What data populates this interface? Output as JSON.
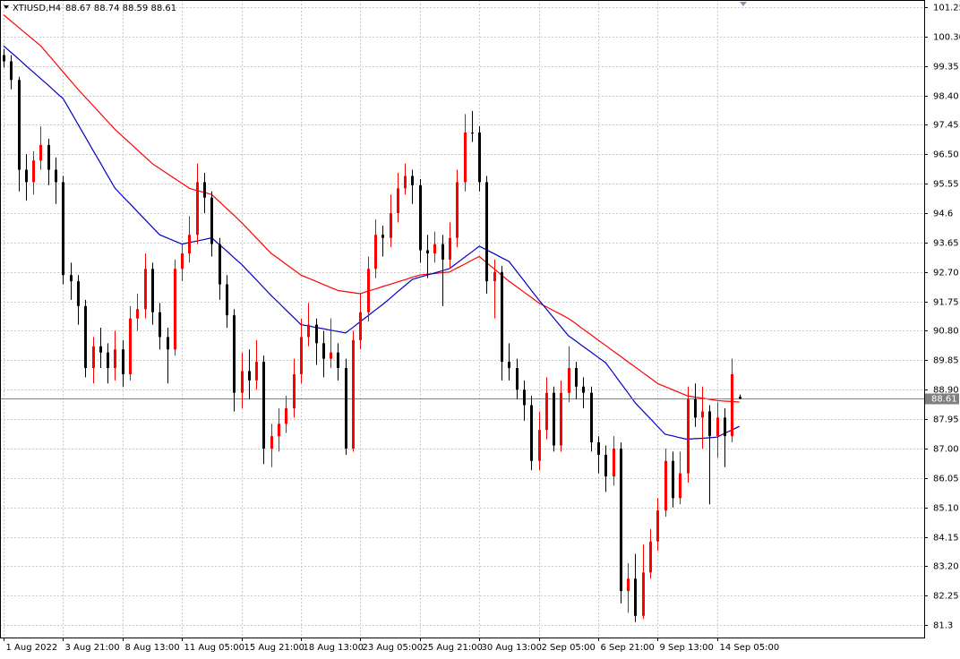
{
  "chart_data": {
    "type": "candlestick",
    "title": "XTIUSD,H4",
    "up_color": "#ff0000",
    "down_color": "#000000",
    "grid": true,
    "xlim": [
      -0.48,
      123.86
    ],
    "xticks": [
      {
        "value": 0,
        "label": "1 Aug 2022"
      },
      {
        "value": 8,
        "label": "3 Aug 21:00"
      },
      {
        "value": 16,
        "label": "8 Aug 13:00"
      },
      {
        "value": 24,
        "label": "11 Aug 05:00"
      },
      {
        "value": 32,
        "label": "15 Aug 21:00"
      },
      {
        "value": 40,
        "label": "18 Aug 13:00"
      },
      {
        "value": 48,
        "label": "23 Aug 05:00"
      },
      {
        "value": 56,
        "label": "25 Aug 21:00"
      },
      {
        "value": 64,
        "label": "30 Aug 13:00"
      },
      {
        "value": 72,
        "label": "2 Sep 05:00"
      },
      {
        "value": 80,
        "label": "6 Sep 21:00"
      },
      {
        "value": 88,
        "label": "9 Sep 13:00"
      },
      {
        "value": 96,
        "label": "14 Sep 05:00"
      }
    ],
    "ylim": [
      80.9,
      101.48
    ],
    "yticks": [
      101.25,
      {
        "value": 100.3,
        "label": "100.30"
      },
      99.35,
      {
        "value": 98.4,
        "label": "98.40"
      },
      97.45,
      {
        "value": 96.5,
        "label": "96.50"
      },
      95.55,
      94.6,
      93.65,
      {
        "value": 92.7,
        "label": "92.70"
      },
      91.75,
      {
        "value": 90.8,
        "label": "90.80"
      },
      89.85,
      {
        "value": 88.9,
        "label": "88.90"
      },
      87.95,
      {
        "value": 87,
        "label": "87.00"
      },
      86.05,
      {
        "value": 85.1,
        "label": "85.10"
      },
      84.15,
      {
        "value": 83.2,
        "label": "83.20"
      },
      82.25,
      81.3
    ],
    "open": [
      99.7,
      99.5,
      98.9,
      96.0,
      95.6,
      96.3,
      96.8,
      96.0,
      95.6,
      92.6,
      92.4,
      91.6,
      89.6,
      90.3,
      90.1,
      89.6,
      90.2,
      89.4,
      91.2,
      91.5,
      92.8,
      91.4,
      90.6,
      90.2,
      92.8,
      93.3,
      93.9,
      95.6,
      95.1,
      93.6,
      92.3,
      91.3,
      88.8,
      89.5,
      89.2,
      89.8,
      87.0,
      87.4,
      87.8,
      88.3,
      89.4,
      90.6,
      91.0,
      90.4,
      89.9,
      90.1,
      89.6,
      87.0,
      90.5,
      91.4,
      92.8,
      93.9,
      93.8,
      94.6,
      95.4,
      95.8,
      95.5,
      93.4,
      93.3,
      93.6,
      93.1,
      93.8,
      95.6,
      97.2,
      97.2,
      95.6,
      92.4,
      92.7,
      89.8,
      89.6,
      88.9,
      88.4,
      86.6,
      87.6,
      88.8,
      87.1,
      88.8,
      89.6,
      89.0,
      88.8,
      87.2,
      86.8,
      86.1,
      87.0,
      82.4,
      82.8,
      81.6,
      83.0,
      84.0,
      85.0,
      86.6,
      85.4,
      86.2,
      88.6,
      88.0,
      88.2,
      87.4,
      88.0,
      87.4,
      88.67
    ],
    "high": [
      99.9,
      99.7,
      99.0,
      96.5,
      96.6,
      97.4,
      97.0,
      96.4,
      95.8,
      93.0,
      92.6,
      91.8,
      90.6,
      90.9,
      90.4,
      90.8,
      90.5,
      91.6,
      92.0,
      93.3,
      93.0,
      91.7,
      90.9,
      93.1,
      93.6,
      94.5,
      96.2,
      95.9,
      95.3,
      93.8,
      92.6,
      91.5,
      90.1,
      90.2,
      90.5,
      90.0,
      87.8,
      88.3,
      88.7,
      89.9,
      91.2,
      91.7,
      91.2,
      90.8,
      91.2,
      90.4,
      89.9,
      90.8,
      92.0,
      93.2,
      94.4,
      94.2,
      95.2,
      95.9,
      96.2,
      96.0,
      95.7,
      93.9,
      94.0,
      93.9,
      94.3,
      96.0,
      97.8,
      97.9,
      97.4,
      95.8,
      93.1,
      92.9,
      90.4,
      89.9,
      89.2,
      88.7,
      88.2,
      89.3,
      89.0,
      89.2,
      90.3,
      89.8,
      89.3,
      89.0,
      87.4,
      87.1,
      87.4,
      87.2,
      83.3,
      83.6,
      83.9,
      84.4,
      85.4,
      87.0,
      86.9,
      86.9,
      89.0,
      89.1,
      89.0,
      88.4,
      88.5,
      88.3,
      89.9,
      88.74
    ],
    "low": [
      99.3,
      98.6,
      95.3,
      95.0,
      95.2,
      96.0,
      95.5,
      94.9,
      92.3,
      91.8,
      91.0,
      89.3,
      89.1,
      89.6,
      89.1,
      89.2,
      89.0,
      89.2,
      90.8,
      91.2,
      91.0,
      90.2,
      89.1,
      90.0,
      92.4,
      93.0,
      93.6,
      94.6,
      93.2,
      91.8,
      90.9,
      88.2,
      88.3,
      88.6,
      88.9,
      86.5,
      86.4,
      86.9,
      87.5,
      88.0,
      89.1,
      90.3,
      89.7,
      89.3,
      89.6,
      89.2,
      86.8,
      86.9,
      90.2,
      91.1,
      92.5,
      93.2,
      93.5,
      94.3,
      95.2,
      94.9,
      93.0,
      92.5,
      93.0,
      91.6,
      92.8,
      93.5,
      95.3,
      96.9,
      95.3,
      92.0,
      91.2,
      89.2,
      89.2,
      88.6,
      87.9,
      86.3,
      86.3,
      87.3,
      86.9,
      86.9,
      88.5,
      88.6,
      88.3,
      86.9,
      86.2,
      85.6,
      85.8,
      82.0,
      81.7,
      81.4,
      81.5,
      82.8,
      83.7,
      84.8,
      85.1,
      85.2,
      85.9,
      87.7,
      87.0,
      85.2,
      86.7,
      86.4,
      87.2,
      88.59
    ],
    "close": [
      99.5,
      98.9,
      96.0,
      95.6,
      96.3,
      96.8,
      96.0,
      95.6,
      92.6,
      92.4,
      91.6,
      89.6,
      90.3,
      90.1,
      89.6,
      90.2,
      89.4,
      91.2,
      91.5,
      92.8,
      91.4,
      90.6,
      90.2,
      92.8,
      93.3,
      93.9,
      95.6,
      95.1,
      93.6,
      92.3,
      91.3,
      88.8,
      89.5,
      89.2,
      89.8,
      87.0,
      87.4,
      87.8,
      88.3,
      89.4,
      90.6,
      91.0,
      90.4,
      89.9,
      90.1,
      89.6,
      87.0,
      90.5,
      91.4,
      92.8,
      93.9,
      93.8,
      94.6,
      95.4,
      95.8,
      95.5,
      93.4,
      93.3,
      93.6,
      93.1,
      93.8,
      95.6,
      97.2,
      97.2,
      95.6,
      92.4,
      92.7,
      89.8,
      89.6,
      88.9,
      88.4,
      86.6,
      87.6,
      88.8,
      87.1,
      88.8,
      89.6,
      89.0,
      88.8,
      87.2,
      86.8,
      86.1,
      87.0,
      82.4,
      82.8,
      81.6,
      83.0,
      84.0,
      85.0,
      86.6,
      85.4,
      86.2,
      88.6,
      88.0,
      88.2,
      87.4,
      88.0,
      87.4,
      89.4,
      88.61
    ],
    "moving_averages": [
      {
        "color": "#ff0000",
        "values": [
          101.0,
          100.8,
          100.6,
          100.4,
          100.2,
          100.0,
          99.72,
          99.44,
          99.16,
          98.88,
          98.6,
          98.34,
          98.08,
          97.82,
          97.56,
          97.3,
          97.08,
          96.86,
          96.64,
          96.42,
          96.2,
          96.04,
          95.88,
          95.72,
          95.56,
          95.4,
          95.33,
          95.27,
          95.2,
          94.98,
          94.75,
          94.53,
          94.3,
          94.05,
          93.8,
          93.55,
          93.3,
          93.13,
          92.95,
          92.78,
          92.6,
          92.5,
          92.4,
          92.3,
          92.2,
          92.1,
          92.07,
          92.03,
          92.0,
          92.08,
          92.15,
          92.23,
          92.3,
          92.38,
          92.45,
          92.53,
          92.6,
          92.63,
          92.65,
          92.68,
          92.7,
          92.83,
          92.95,
          93.08,
          93.2,
          93.0,
          92.8,
          92.6,
          92.4,
          92.23,
          92.05,
          91.88,
          91.7,
          91.58,
          91.45,
          91.33,
          91.2,
          91.03,
          90.85,
          90.68,
          90.5,
          90.33,
          90.15,
          89.98,
          89.8,
          89.63,
          89.45,
          89.28,
          89.1,
          89.0,
          88.9,
          88.8,
          88.7,
          88.66,
          88.63,
          88.59,
          88.55,
          88.53,
          88.52,
          88.5
        ]
      },
      {
        "color": "#0000c8",
        "values": [
          100.0,
          99.79,
          99.58,
          99.36,
          99.15,
          98.94,
          98.73,
          98.51,
          98.3,
          97.89,
          97.47,
          97.06,
          96.64,
          96.23,
          95.81,
          95.4,
          95.15,
          94.9,
          94.65,
          94.4,
          94.15,
          93.9,
          93.8,
          93.7,
          93.6,
          93.65,
          93.7,
          93.75,
          93.8,
          93.59,
          93.38,
          93.16,
          92.95,
          92.7,
          92.45,
          92.19,
          91.94,
          91.71,
          91.47,
          91.24,
          91.0,
          90.96,
          90.91,
          90.87,
          90.82,
          90.78,
          90.73,
          90.91,
          91.1,
          91.28,
          91.47,
          91.65,
          91.85,
          92.06,
          92.26,
          92.46,
          92.53,
          92.6,
          92.67,
          92.74,
          92.81,
          92.99,
          93.17,
          93.35,
          93.53,
          93.41,
          93.29,
          93.16,
          93.04,
          92.73,
          92.42,
          92.11,
          91.8,
          91.51,
          91.22,
          90.93,
          90.64,
          90.47,
          90.29,
          90.12,
          89.94,
          89.77,
          89.45,
          89.12,
          88.8,
          88.47,
          88.22,
          87.97,
          87.71,
          87.46,
          87.41,
          87.35,
          87.3,
          87.32,
          87.33,
          87.35,
          87.37,
          87.49,
          87.6,
          87.72
        ]
      }
    ]
  }
}
